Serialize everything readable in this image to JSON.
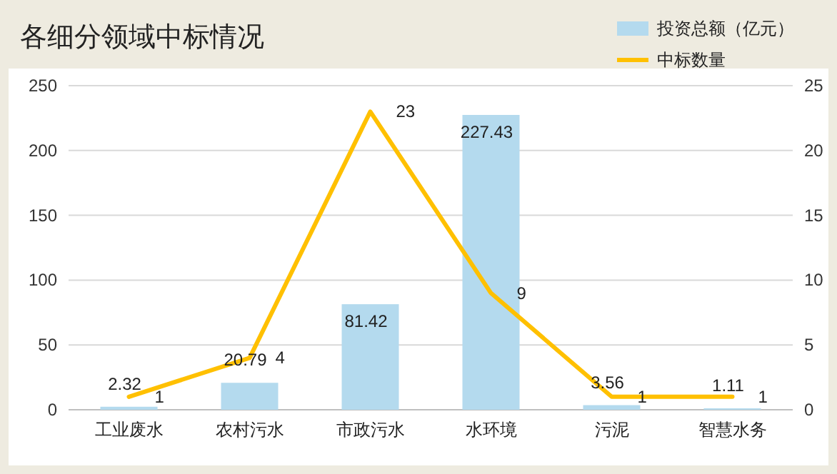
{
  "chart_data": {
    "type": "bar",
    "title": "各细分领域中标情况",
    "categories": [
      "工业废水",
      "农村污水",
      "市政污水",
      "水环境",
      "污泥",
      "智慧水务"
    ],
    "series": [
      {
        "name": "投资总额（亿元）",
        "color": "#b4daee",
        "values": [
          2.32,
          20.79,
          81.42,
          227.43,
          3.56,
          1.11
        ]
      },
      {
        "name": "中标数量",
        "type": "line",
        "axis": "y2",
        "color": "#ffc000",
        "values": [
          1,
          4,
          23,
          9,
          1,
          1
        ]
      }
    ],
    "ylim": [
      0,
      250
    ],
    "yticks": [
      0,
      50,
      100,
      150,
      200,
      250
    ],
    "y2lim": [
      0,
      25
    ],
    "y2ticks": [
      0,
      5,
      10,
      15,
      20,
      25
    ],
    "grid": "y",
    "legend": "top right",
    "data_labels": true,
    "marker": "none",
    "line_style": "solid"
  }
}
